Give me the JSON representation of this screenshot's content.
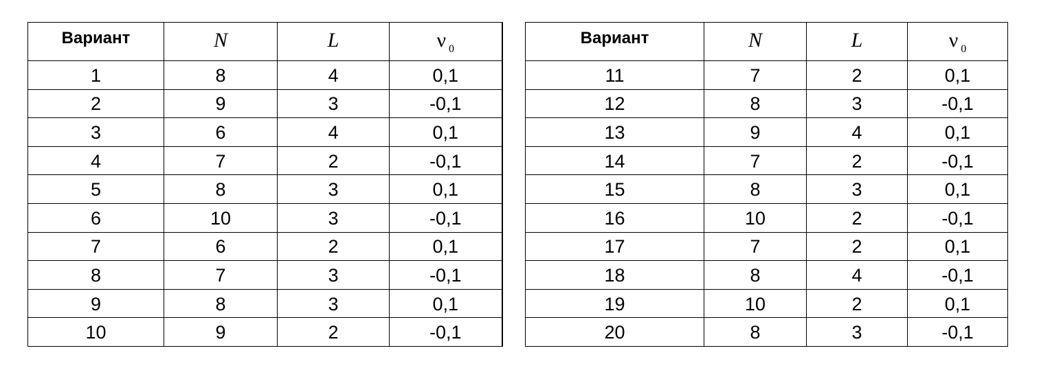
{
  "table": {
    "header": {
      "variant": "Вариант",
      "n": "N",
      "l": "L",
      "nu": "ν",
      "nu_sub": "0"
    },
    "rows": [
      {
        "left": {
          "variant": "1",
          "n": "8",
          "l": "4",
          "nu": "0,1"
        },
        "right": {
          "variant": "11",
          "n": "7",
          "l": "2",
          "nu": "0,1"
        }
      },
      {
        "left": {
          "variant": "2",
          "n": "9",
          "l": "3",
          "nu": "-0,1"
        },
        "right": {
          "variant": "12",
          "n": "8",
          "l": "3",
          "nu": "-0,1"
        }
      },
      {
        "left": {
          "variant": "3",
          "n": "6",
          "l": "4",
          "nu": "0,1"
        },
        "right": {
          "variant": "13",
          "n": "9",
          "l": "4",
          "nu": "0,1"
        }
      },
      {
        "left": {
          "variant": "4",
          "n": "7",
          "l": "2",
          "nu": "-0,1"
        },
        "right": {
          "variant": "14",
          "n": "7",
          "l": "2",
          "nu": "-0,1"
        }
      },
      {
        "left": {
          "variant": "5",
          "n": "8",
          "l": "3",
          "nu": "0,1"
        },
        "right": {
          "variant": "15",
          "n": "8",
          "l": "3",
          "nu": "0,1"
        }
      },
      {
        "left": {
          "variant": "6",
          "n": "10",
          "l": "3",
          "nu": "-0,1"
        },
        "right": {
          "variant": "16",
          "n": "10",
          "l": "2",
          "nu": "-0,1"
        }
      },
      {
        "left": {
          "variant": "7",
          "n": "6",
          "l": "2",
          "nu": "0,1"
        },
        "right": {
          "variant": "17",
          "n": "7",
          "l": "2",
          "nu": "0,1"
        }
      },
      {
        "left": {
          "variant": "8",
          "n": "7",
          "l": "3",
          "nu": "-0,1"
        },
        "right": {
          "variant": "18",
          "n": "8",
          "l": "4",
          "nu": "-0,1"
        }
      },
      {
        "left": {
          "variant": "9",
          "n": "8",
          "l": "3",
          "nu": "0,1"
        },
        "right": {
          "variant": "19",
          "n": "10",
          "l": "2",
          "nu": "0,1"
        }
      },
      {
        "left": {
          "variant": "10",
          "n": "9",
          "l": "2",
          "nu": "-0,1"
        },
        "right": {
          "variant": "20",
          "n": "8",
          "l": "3",
          "nu": "-0,1"
        }
      }
    ]
  }
}
